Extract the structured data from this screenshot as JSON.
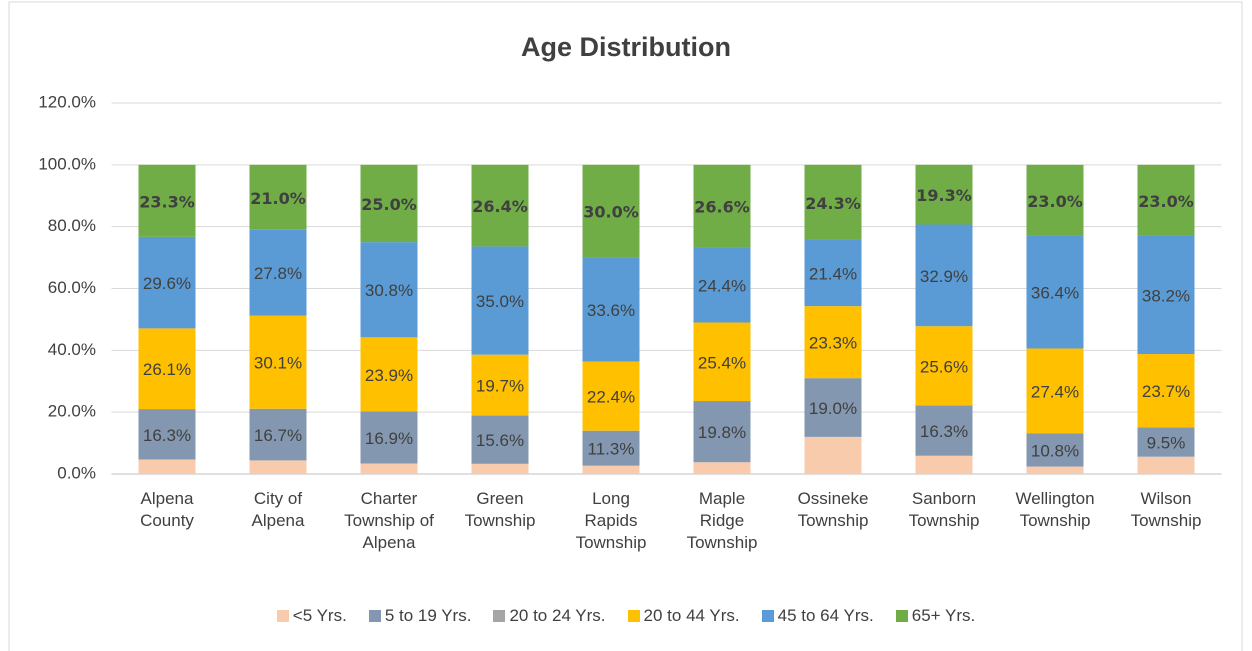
{
  "chart_data": {
    "type": "stacked_bar",
    "title": "Age Distribution",
    "categories": [
      "Alpena County",
      "City of Alpena",
      "Charter Township of Alpena",
      "Green Township",
      "Long Rapids Township",
      "Maple Ridge Township",
      "Ossineke Township",
      "Sanborn Township",
      "Wellington Township",
      "Wilson Township"
    ],
    "series": [
      {
        "name": "<5 Yrs.",
        "color": "#f8cbad",
        "values": [
          4.7,
          4.4,
          3.4,
          3.3,
          2.7,
          3.8,
          12.0,
          5.9,
          2.4,
          5.6
        ]
      },
      {
        "name": "5 to 19 Yrs.",
        "color": "#8497b0",
        "values": [
          16.3,
          16.7,
          16.9,
          15.6,
          11.3,
          19.8,
          19.0,
          16.3,
          10.8,
          9.5
        ],
        "value_labels": [
          "16.3%",
          "16.7%",
          "16.9%",
          "15.6%",
          "11.3%",
          "19.8%",
          "19.0%",
          "16.3%",
          "10.8%",
          "9.5%"
        ]
      },
      {
        "name": "20 to 24 Yrs.",
        "color": "#a5a5a5",
        "values": [
          0,
          0,
          0,
          0,
          0,
          0,
          0,
          0,
          0,
          0
        ]
      },
      {
        "name": "20 to 44 Yrs.",
        "color": "#ffc000",
        "values": [
          26.1,
          30.1,
          23.9,
          19.7,
          22.4,
          25.4,
          23.3,
          25.6,
          27.4,
          23.7
        ],
        "value_labels": [
          "26.1%",
          "30.1%",
          "23.9%",
          "19.7%",
          "22.4%",
          "25.4%",
          "23.3%",
          "25.6%",
          "27.4%",
          "23.7%"
        ]
      },
      {
        "name": "45 to 64 Yrs.",
        "color": "#5b9bd5",
        "values": [
          29.6,
          27.8,
          30.8,
          35.0,
          33.6,
          24.4,
          21.4,
          32.9,
          36.4,
          38.2
        ],
        "value_labels": [
          "29.6%",
          "27.8%",
          "30.8%",
          "35.0%",
          "33.6%",
          "24.4%",
          "21.4%",
          "32.9%",
          "36.4%",
          "38.2%"
        ]
      },
      {
        "name": "65+ Yrs.",
        "color": "#70ad47",
        "values": [
          23.3,
          21.0,
          25.0,
          26.4,
          30.0,
          26.6,
          24.3,
          19.3,
          23.0,
          23.0
        ],
        "value_labels": [
          "23.3%",
          "21.0%",
          "25.0%",
          "26.4%",
          "30.0%",
          "26.6%",
          "24.3%",
          "19.3%",
          "23.0%",
          "23.0%"
        ]
      }
    ],
    "ylim": [
      0,
      120
    ],
    "yticks": [
      {
        "value": 0,
        "label": "0.0%"
      },
      {
        "value": 20,
        "label": "20.0%"
      },
      {
        "value": 40,
        "label": "40.0%"
      },
      {
        "value": 60,
        "label": "60.0%"
      },
      {
        "value": 80,
        "label": "80.0%"
      },
      {
        "value": 100,
        "label": "100.0%"
      },
      {
        "value": 120,
        "label": "120.0%"
      }
    ],
    "grid": true,
    "legend": "bottom"
  }
}
